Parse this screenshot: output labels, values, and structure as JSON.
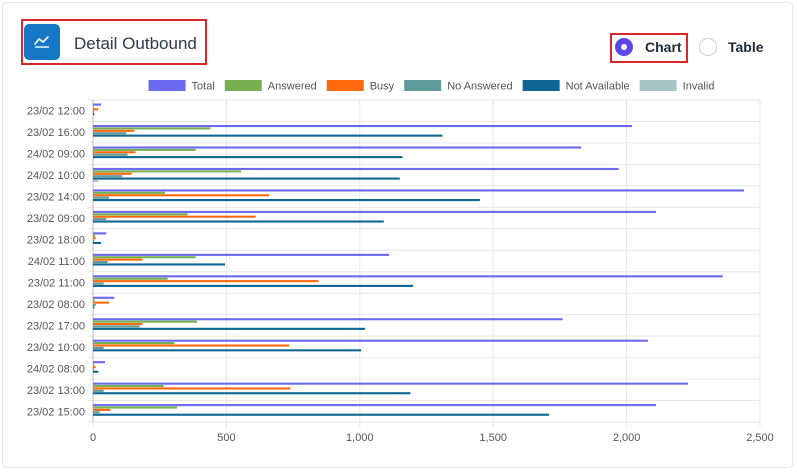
{
  "header": {
    "title": "Detail Outbound",
    "view_options": [
      {
        "label": "Chart",
        "selected": true
      },
      {
        "label": "Table",
        "selected": false
      }
    ]
  },
  "colors": {
    "accent": "#5a48e6",
    "title_icon_bg": "#1478c7",
    "highlight_border": "#d9252b"
  },
  "chart_data": {
    "type": "bar",
    "orientation": "horizontal",
    "categories": [
      "23/02 12:00",
      "23/02 16:00",
      "24/02 09:00",
      "24/02 10:00",
      "23/02 14:00",
      "23/02 09:00",
      "23/02 18:00",
      "24/02 11:00",
      "23/02 11:00",
      "23/02 08:00",
      "23/02 17:00",
      "23/02 10:00",
      "24/02 08:00",
      "23/02 13:00",
      "23/02 15:00"
    ],
    "series": [
      {
        "name": "Total",
        "color": "#6b69ee",
        "values": [
          30,
          2020,
          1830,
          1970,
          2440,
          2110,
          50,
          1110,
          2360,
          80,
          1760,
          2080,
          45,
          2230,
          2110
        ]
      },
      {
        "name": "Answered",
        "color": "#77b050",
        "values": [
          3,
          440,
          385,
          555,
          270,
          355,
          8,
          385,
          280,
          6,
          390,
          305,
          4,
          265,
          315
        ]
      },
      {
        "name": "Busy",
        "color": "#ff6a0e",
        "values": [
          20,
          155,
          160,
          145,
          660,
          610,
          10,
          185,
          845,
          60,
          185,
          735,
          10,
          740,
          65
        ]
      },
      {
        "name": "No Answered",
        "color": "#5f9b9b",
        "values": [
          4,
          125,
          130,
          110,
          60,
          50,
          5,
          55,
          40,
          10,
          175,
          40,
          5,
          40,
          25
        ]
      },
      {
        "name": "Not Available",
        "color": "#0e6693",
        "values": [
          5,
          1310,
          1160,
          1150,
          1450,
          1090,
          30,
          495,
          1200,
          5,
          1020,
          1005,
          20,
          1190,
          1710
        ]
      },
      {
        "name": "Invalid",
        "color": "#a6c6c6",
        "values": [
          0,
          0,
          0,
          20,
          0,
          0,
          0,
          0,
          0,
          0,
          0,
          0,
          0,
          0,
          0
        ]
      }
    ],
    "xlim": [
      0,
      2500
    ],
    "xticks": [
      "0",
      "500",
      "1,000",
      "1,500",
      "2,000",
      "2,500"
    ],
    "xtick_values": [
      0,
      500,
      1000,
      1500,
      2000,
      2500
    ],
    "grid": true,
    "legend_position": "top"
  }
}
